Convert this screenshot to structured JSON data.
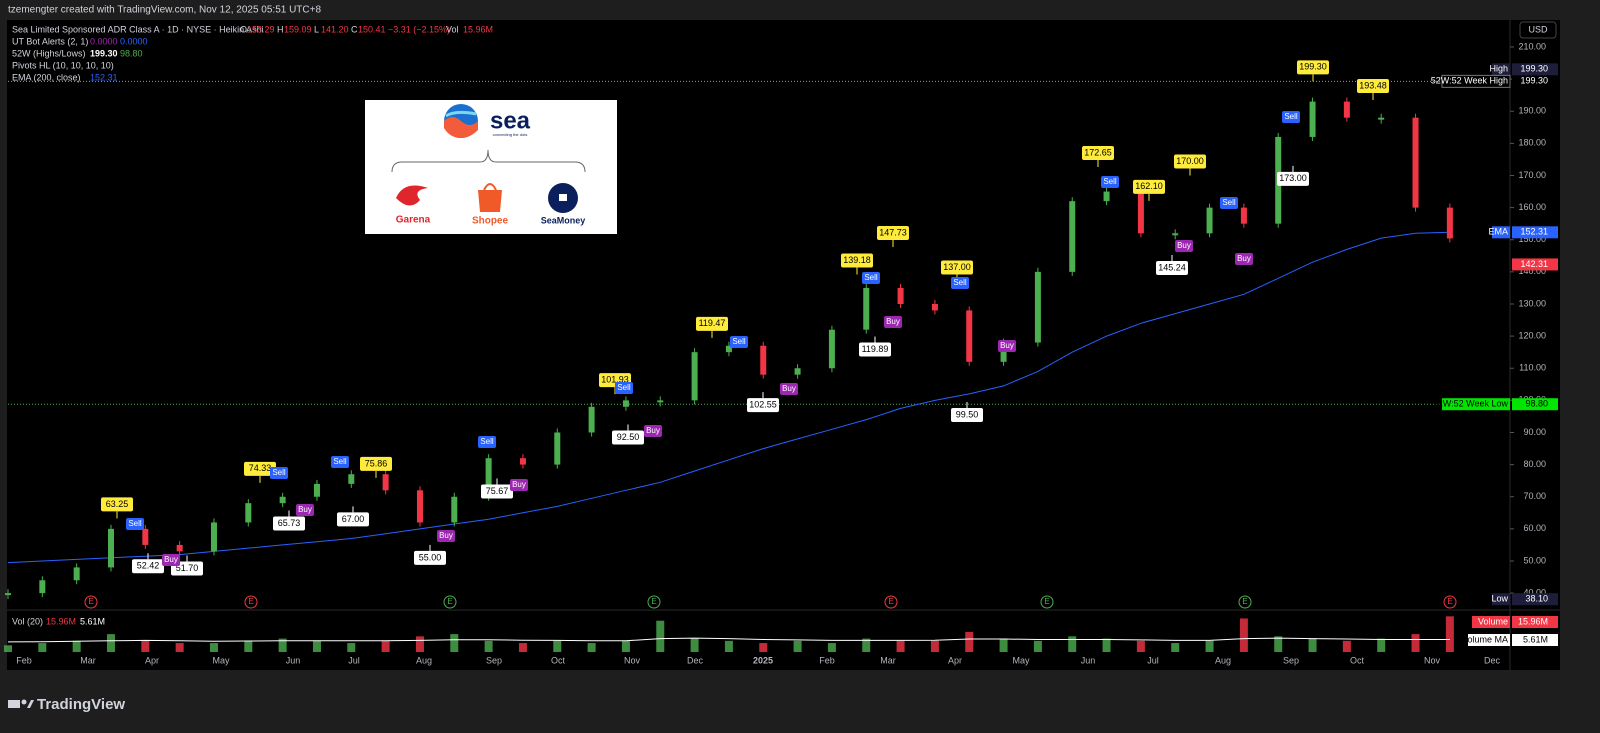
{
  "header": {
    "credit": "tzemengter created with TradingView.com, Nov 12, 2025 05:51 UTC+8",
    "logo": "TradingView"
  },
  "logo_image": {
    "brand": "sea",
    "tagline": "connecting the dots",
    "products": [
      "Garena",
      "Shopee",
      "SeaMoney"
    ]
  },
  "chart_data": {
    "type": "candlestick",
    "title": "Sea Limited Sponsored ADR Class A · 1D · NYSE · Heikin Ashi",
    "ohlc": [
      {
        "key": "O",
        "label": "153.29"
      },
      {
        "key": "H",
        "label": "159.09"
      },
      {
        "key": "L",
        "label": "141.20"
      },
      {
        "key": "C",
        "label": "150.41"
      }
    ],
    "change": "−3.31 (−2.15%)",
    "volume_key": "Vol",
    "volume_label": "15.96M",
    "indicators": [
      {
        "name": "UT Bot Alerts (2, 1)",
        "values": [
          "0.0000",
          "0.0000"
        ]
      },
      {
        "name": "52W (Highs/Lows)",
        "values": [
          "199.30",
          "98.80"
        ]
      },
      {
        "name": "Pivots HL (10, 10, 10, 10)"
      },
      {
        "name": "EMA (200, close)",
        "values": [
          "152.31"
        ]
      }
    ],
    "volume_legend": {
      "name": "Vol (20)",
      "values": [
        "15.96M",
        "5.61M"
      ]
    },
    "currency": "USD",
    "ylim": [
      36.3,
      218.4
    ],
    "yticks": [
      {
        "value": 40,
        "label": "40.00"
      },
      {
        "value": 50,
        "label": "50.00"
      },
      {
        "value": 60,
        "label": "60.00"
      },
      {
        "value": 70,
        "label": "70.00"
      },
      {
        "value": 80,
        "label": "80.00"
      },
      {
        "value": 90,
        "label": "90.00"
      },
      {
        "value": 100,
        "label": "100.00"
      },
      {
        "value": 110,
        "label": "110.00"
      },
      {
        "value": 120,
        "label": "120.00"
      },
      {
        "value": 130,
        "label": "130.00"
      },
      {
        "value": 140,
        "label": "140.00"
      },
      {
        "value": 150,
        "label": "150.00"
      },
      {
        "value": 160,
        "label": "160.00"
      },
      {
        "value": 170,
        "label": "170.00"
      },
      {
        "value": 180,
        "label": "180.00"
      },
      {
        "value": 190,
        "label": "190.00"
      },
      {
        "value": 200,
        "label": "200.00"
      },
      {
        "value": 210,
        "label": "210.00"
      }
    ],
    "time_labels": [
      "Feb",
      "Mar",
      "Apr",
      "May",
      "Jun",
      "Jul",
      "Aug",
      "Sep",
      "Oct",
      "Nov",
      "Dec",
      "2025",
      "Feb",
      "Mar",
      "Apr",
      "May",
      "Jun",
      "Jul",
      "Aug",
      "Sep",
      "Oct",
      "Nov",
      "Dec"
    ],
    "up_color": "#4caf50",
    "down_color": "#f23645",
    "series": [
      {
        "name": "Heikin Ashi",
        "values": [
          40,
          44,
          48,
          60,
          55,
          53,
          62,
          68,
          70,
          74,
          77,
          72,
          62,
          70,
          82,
          80,
          90,
          98,
          100,
          100,
          115,
          117,
          108,
          110,
          122,
          135,
          130,
          128,
          112,
          118,
          140,
          162,
          165,
          152,
          152,
          160,
          155,
          182,
          193,
          188,
          188,
          160,
          150.41
        ]
      },
      {
        "name": "EMA (200, close)",
        "color": "#2962ff",
        "values": [
          49.5,
          50,
          50.5,
          51,
          51.5,
          52,
          53,
          54,
          55,
          56,
          57,
          58.5,
          60,
          61.5,
          63,
          65,
          67,
          69.5,
          72,
          74.5,
          78,
          81.5,
          85,
          88,
          91,
          94,
          97.5,
          100,
          102,
          104.5,
          109,
          115,
          120,
          124,
          127,
          130,
          133,
          138,
          143,
          147,
          150.5,
          152,
          152.31
        ]
      },
      {
        "name": "Volume",
        "values": [
          3,
          4,
          5,
          8,
          5,
          4,
          4,
          5,
          6,
          5,
          4,
          5,
          7,
          8,
          5,
          4,
          5,
          4,
          5,
          14,
          6,
          5,
          4,
          5,
          4,
          6,
          5,
          5,
          9,
          6,
          5,
          7,
          6,
          5,
          4,
          5,
          15,
          7,
          6,
          5,
          6,
          8,
          15.96
        ]
      },
      {
        "name": "Volume MA",
        "color": "#ffffff",
        "values": [
          4.5,
          4.6,
          4.8,
          5,
          5.2,
          5,
          4.8,
          4.9,
          5,
          5,
          5,
          5,
          5.2,
          5.5,
          5.5,
          5.3,
          5.2,
          5,
          5,
          6,
          6.2,
          6,
          5.6,
          5.4,
          5.2,
          5.2,
          5.2,
          5.3,
          5.8,
          5.8,
          5.6,
          5.6,
          5.6,
          5.4,
          5.2,
          5.2,
          6,
          6.2,
          6,
          5.8,
          5.6,
          5.6,
          5.61
        ]
      }
    ],
    "volume_lim": [
      0,
      17
    ],
    "pivot_highs": {
      "values": [
        63.25,
        74.33,
        75.86,
        101.93,
        119.47,
        139.18,
        147.73,
        137,
        172.65,
        162.1,
        170,
        199.3,
        193.48
      ],
      "value_labels": [
        "63.25",
        "74.33",
        "75.86",
        "101.93",
        "119.47",
        "139.18",
        "147.73",
        "137.00",
        "172.65",
        "162.10",
        "170.00",
        "199.30",
        "193.48"
      ]
    },
    "pivot_lows": {
      "values": [
        52.42,
        51.7,
        65.73,
        67,
        55,
        75.67,
        92.5,
        102.55,
        119.89,
        99.5,
        145.24,
        173
      ],
      "value_labels": [
        "52.42",
        "51.70",
        "65.73",
        "67.00",
        "55.00",
        "75.67",
        "92.50",
        "102.55",
        "119.89",
        "99.50",
        "145.24",
        "173.00"
      ]
    },
    "signals": [
      "Sell",
      "Buy",
      "Sell",
      "Buy",
      "Sell",
      "Buy",
      "Sell",
      "Buy",
      "Sell",
      "Buy",
      "Sell",
      "Buy",
      "Sell",
      "Buy",
      "Sell",
      "Buy",
      "Sell",
      "Buy",
      "Sell",
      "Buy",
      "Sell"
    ],
    "earnings_marker": "E",
    "range_high": {
      "name": "High",
      "value": 199.3,
      "label": "199.30"
    },
    "range_low": {
      "name": "Low",
      "value": 38.1,
      "label": "38.10"
    },
    "week52_high": {
      "name": "52W:52 Week High",
      "value": 199.3,
      "label": "199.30"
    },
    "week52_low": {
      "name": "52W:52 Week Low",
      "value": 98.8,
      "label": "98.80"
    },
    "ema_badge": {
      "name": "EMA",
      "value": 152.31,
      "label": "152.31"
    },
    "price_badge": {
      "value": 142.31,
      "label": "142.31"
    },
    "volume_badge": {
      "name": "Volume",
      "value": 15.96,
      "label": "15.96M"
    },
    "volume_ma_badge": {
      "name": "Volume MA",
      "value": 5.61,
      "label": "5.61M"
    }
  }
}
